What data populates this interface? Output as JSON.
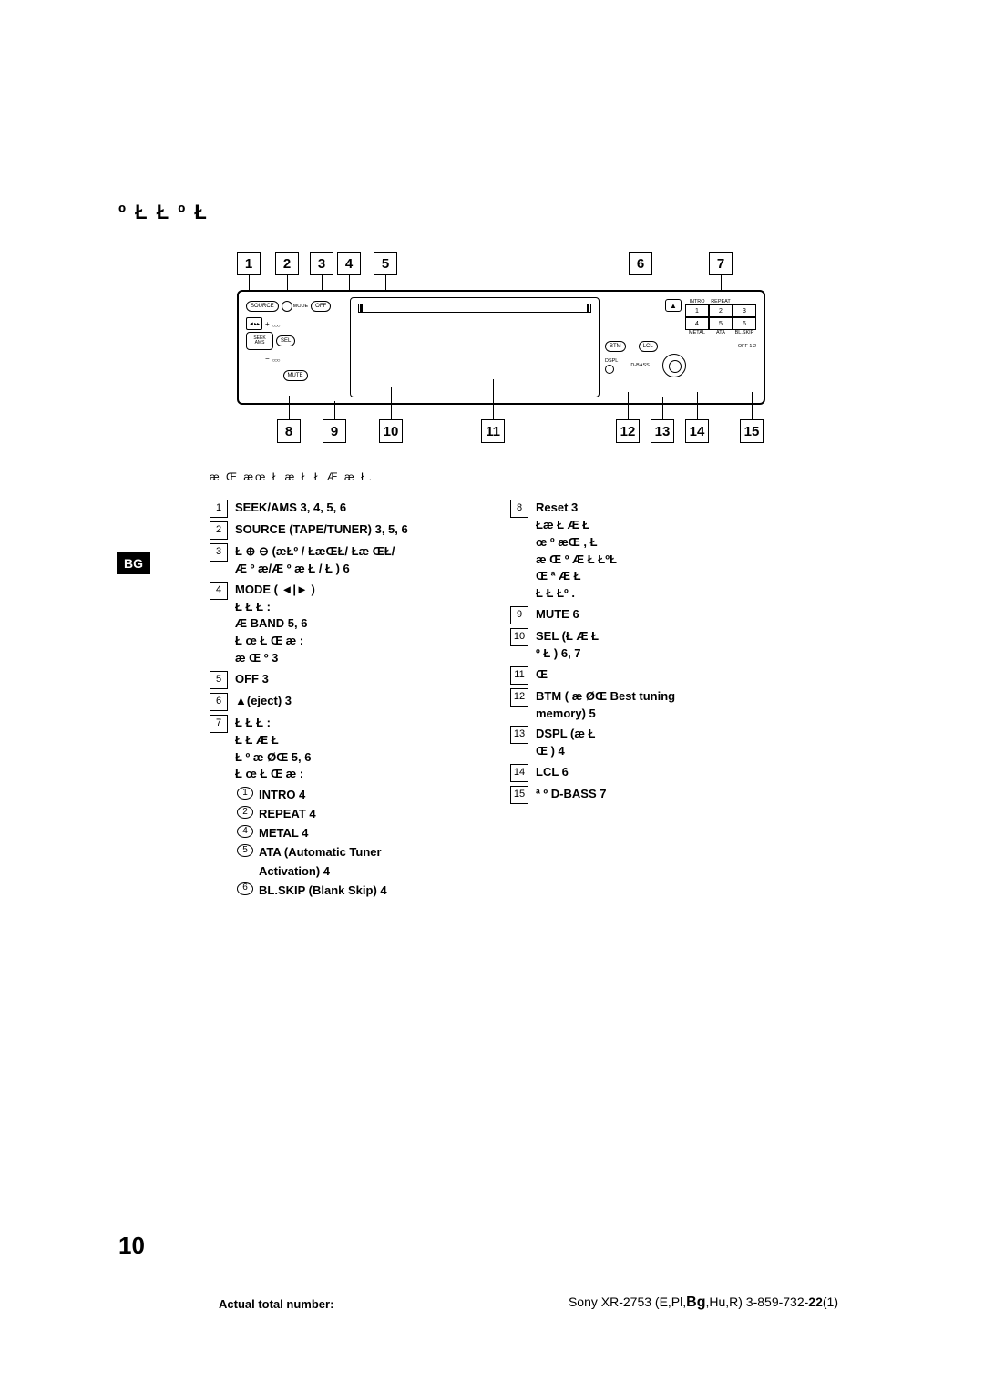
{
  "title": "º Ł    Ł    º Ł",
  "caption": "æ  Œ  æœ    Ł æ  Ł Ł        Æ  æ Ł.",
  "bg_tag": "BG",
  "diagram": {
    "top_nums": [
      "1",
      "2",
      "3",
      "4",
      "5",
      "6",
      "7"
    ],
    "bot_nums": [
      "8",
      "9",
      "10",
      "11",
      "12",
      "13",
      "14",
      "15"
    ],
    "labels": {
      "source": "SOURCE",
      "mode": "MODE",
      "off": "OFF",
      "seek": "SEEK",
      "ams": "AMS",
      "sel": "SEL",
      "mute": "MUTE",
      "intro": "INTRO",
      "repeat": "REPEAT",
      "metal": "METAL",
      "ata": "ATA",
      "blskip": "BL.SKIP",
      "btm": "BTM",
      "lcl": "LCL",
      "dspl": "DSPL",
      "dbass": "D-BASS",
      "off12": "OFF 1 2"
    },
    "presets": [
      "1",
      "2",
      "3",
      "4",
      "5",
      "6"
    ]
  },
  "left_items": [
    {
      "n": "1",
      "t": "SEEK/AMS  3, 4, 5, 6"
    },
    {
      "n": "2",
      "t": "SOURCE (TAPE/TUNER)  3, 5, 6"
    },
    {
      "n": "3",
      "t": "Ł        ⊕ ⊖  (æŁº / ŁæŒŁ/ Łæ ŒŁ/",
      "t2": "Æ º æ/Æ º æ       Ł /   Ł )  6"
    },
    {
      "n": "4",
      "t": "MODE (    ◄|► )",
      "lines": [
        "Ł Ł Ł   :",
        "  Æ    BAND  5, 6",
        "Ł œ   Ł       Œ æ   :",
        "       æ Œ     º      3"
      ]
    },
    {
      "n": "5",
      "t": "OFF  3"
    },
    {
      "n": "6",
      "t": "       ▲(eject)  3"
    },
    {
      "n": "7",
      "t": "Ł Ł Ł   :",
      "lines": [
        "    Ł   Ł Æ    Ł",
        "    Ł  º    æ   ØŒ   5, 6",
        "Ł œ   Ł       Œ æ   :"
      ],
      "subs": [
        {
          "c": "1",
          "t": "INTRO  4"
        },
        {
          "c": "2",
          "t": "REPEAT  4"
        },
        {
          "c": "4",
          "t": "METAL  4"
        },
        {
          "c": "5",
          "t": "ATA (Automatic Tuner"
        },
        {
          "c": "",
          "t": "Activation)  4"
        },
        {
          "c": "6",
          "t": "BL.SKIP (Blank Skip)  4"
        }
      ]
    }
  ],
  "right_items": [
    {
      "n": "8",
      "t": "Reset  3",
      "lines": [
        "  Łæ        Ł     Æ      Ł",
        "œ      º    æŒ        , Ł",
        "æ      Œ   º        Æ   Ł  ŁºŁ",
        "Œ ª   Æ   Ł",
        "   Ł Ł       Łº   ."
      ]
    },
    {
      "n": "9",
      "t": "MUTE  6"
    },
    {
      "n": "10",
      "t": "SEL (Ł Æ         Ł",
      "t2": "   º  Ł )  6, 7"
    },
    {
      "n": "11",
      "t": "Œ"
    },
    {
      "n": "12",
      "t": "BTM (  æ    ØŒ   Best tuning",
      "t2": "memory)  5"
    },
    {
      "n": "13",
      "t": "DSPL (æ             Ł",
      "t2": "Œ     )  4"
    },
    {
      "n": "14",
      "t": "LCL  6"
    },
    {
      "n": "15",
      "t": "ª º    D-BASS  7"
    }
  ],
  "page_number": "10",
  "footer_left": "Actual total number:",
  "footer_right_pre": "Sony XR-2753 (E,Pl,",
  "footer_right_bg": "Bg",
  "footer_right_mid": ",Hu,R)  3-859-732-",
  "footer_right_b22": "22",
  "footer_right_end": "(1)"
}
